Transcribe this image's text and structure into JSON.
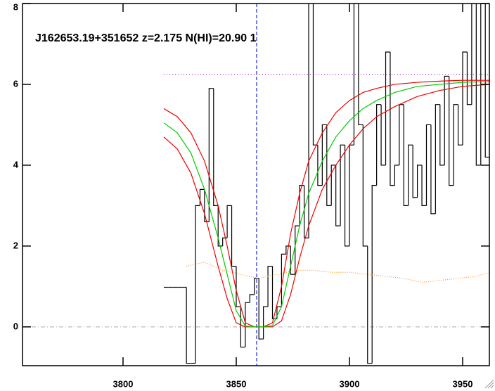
{
  "chart_data": {
    "type": "line",
    "title": "J162653.19+351652 z=2.175 N(HI)=20.90 1",
    "xlim": [
      3755.6,
      3961.8
    ],
    "ylim": [
      -0.96,
      8
    ],
    "xticks": [
      3800,
      3850,
      3900,
      3950
    ],
    "yticks": [
      0,
      2,
      4,
      6,
      8
    ],
    "vline": {
      "x": 3859,
      "color": "#0000cc"
    },
    "hlines": [
      {
        "y": 0,
        "xfrom": 3755.6,
        "color": "#aaaaaa"
      },
      {
        "y": 6.25,
        "xfrom": 3818,
        "color": "#9900cc"
      }
    ],
    "series": [
      {
        "style": "step",
        "color": "#000000",
        "x": [
          3818,
          3820,
          3822,
          3824,
          3826,
          3828,
          3830,
          3832,
          3834,
          3836,
          3838,
          3840,
          3842,
          3844,
          3846,
          3848,
          3850,
          3852,
          3854,
          3856,
          3858,
          3860,
          3862,
          3864,
          3866,
          3868,
          3870,
          3872,
          3874,
          3876,
          3878,
          3880,
          3882,
          3884,
          3886,
          3888,
          3890,
          3892,
          3894,
          3896,
          3898,
          3900,
          3902,
          3904,
          3906,
          3908,
          3910,
          3912,
          3914,
          3916,
          3918,
          3920,
          3922,
          3924,
          3926,
          3928,
          3930,
          3932,
          3934,
          3936,
          3938,
          3940,
          3942,
          3944,
          3946,
          3948,
          3950,
          3952,
          3954,
          3956,
          3958,
          3960,
          3962
        ],
        "values": [
          0.98,
          0.98,
          0.98,
          0.98,
          0.98,
          -0.9,
          -0.9,
          3.0,
          3.4,
          2.6,
          5.9,
          3.0,
          2.0,
          2.2,
          3.0,
          1.5,
          0.5,
          -0.5,
          0.6,
          0.8,
          1.2,
          -0.3,
          0.5,
          1.5,
          0.2,
          0.5,
          1.8,
          2.0,
          1.3,
          2.5,
          3.5,
          2.2,
          8.2,
          4.5,
          3.5,
          5.0,
          3.0,
          4.0,
          2.5,
          4.5,
          2.0,
          4.5,
          8.0,
          5.0,
          2.0,
          -0.9,
          3.5,
          5.5,
          4.0,
          6.8,
          3.5,
          4.0,
          5.5,
          3.0,
          4.5,
          3.2,
          4.0,
          3.0,
          5.0,
          2.8,
          5.5,
          4.0,
          6.2,
          3.5,
          5.5,
          4.5,
          6.8,
          5.5,
          8.0,
          4.0,
          8.0,
          4.2,
          3.5
        ]
      },
      {
        "style": "dotted",
        "color": "#ff9933",
        "x": [
          3828,
          3836,
          3844,
          3852,
          3860,
          3868,
          3876,
          3884,
          3892,
          3900,
          3908,
          3916,
          3924,
          3932,
          3940,
          3948,
          3956,
          3962
        ],
        "values": [
          1.5,
          1.6,
          1.4,
          1.3,
          1.2,
          1.3,
          1.4,
          1.4,
          1.35,
          1.35,
          1.3,
          1.25,
          1.2,
          1.1,
          1.15,
          1.2,
          1.25,
          1.35
        ]
      },
      {
        "style": "solid",
        "color": "#ee0000",
        "x": [
          3818,
          3824,
          3830,
          3836,
          3842,
          3846,
          3850,
          3854,
          3858,
          3862,
          3866,
          3870,
          3874,
          3878,
          3882,
          3888,
          3894,
          3900,
          3906,
          3912,
          3920,
          3930,
          3940,
          3950,
          3962
        ],
        "values": [
          5.4,
          5.2,
          4.8,
          4.1,
          3.0,
          2.0,
          0.9,
          0.1,
          0,
          0,
          0.1,
          1.0,
          2.3,
          3.3,
          4.1,
          4.8,
          5.3,
          5.6,
          5.8,
          5.9,
          6.0,
          6.05,
          6.08,
          6.1,
          6.1
        ]
      },
      {
        "style": "solid",
        "color": "#ee0000",
        "x": [
          3818,
          3824,
          3830,
          3836,
          3842,
          3846,
          3850,
          3854,
          3858,
          3862,
          3866,
          3870,
          3874,
          3878,
          3882,
          3888,
          3894,
          3900,
          3906,
          3912,
          3920,
          3930,
          3940,
          3950,
          3962
        ],
        "values": [
          4.7,
          4.4,
          3.8,
          2.8,
          1.5,
          0.7,
          0.1,
          0,
          0,
          0,
          0,
          0.15,
          0.8,
          1.7,
          2.5,
          3.4,
          4.0,
          4.5,
          4.9,
          5.2,
          5.45,
          5.7,
          5.85,
          5.95,
          6.0
        ]
      },
      {
        "style": "solid",
        "color": "#00cc00",
        "x": [
          3818,
          3824,
          3830,
          3836,
          3842,
          3846,
          3850,
          3854,
          3858,
          3862,
          3866,
          3870,
          3874,
          3878,
          3882,
          3888,
          3894,
          3900,
          3906,
          3912,
          3920,
          3930,
          3940,
          3950,
          3962
        ],
        "values": [
          5.05,
          4.8,
          4.3,
          3.4,
          2.2,
          1.3,
          0.4,
          0.02,
          0,
          0,
          0.03,
          0.5,
          1.5,
          2.5,
          3.3,
          4.1,
          4.7,
          5.1,
          5.4,
          5.6,
          5.8,
          5.95,
          6.0,
          6.05,
          6.07
        ]
      }
    ]
  }
}
